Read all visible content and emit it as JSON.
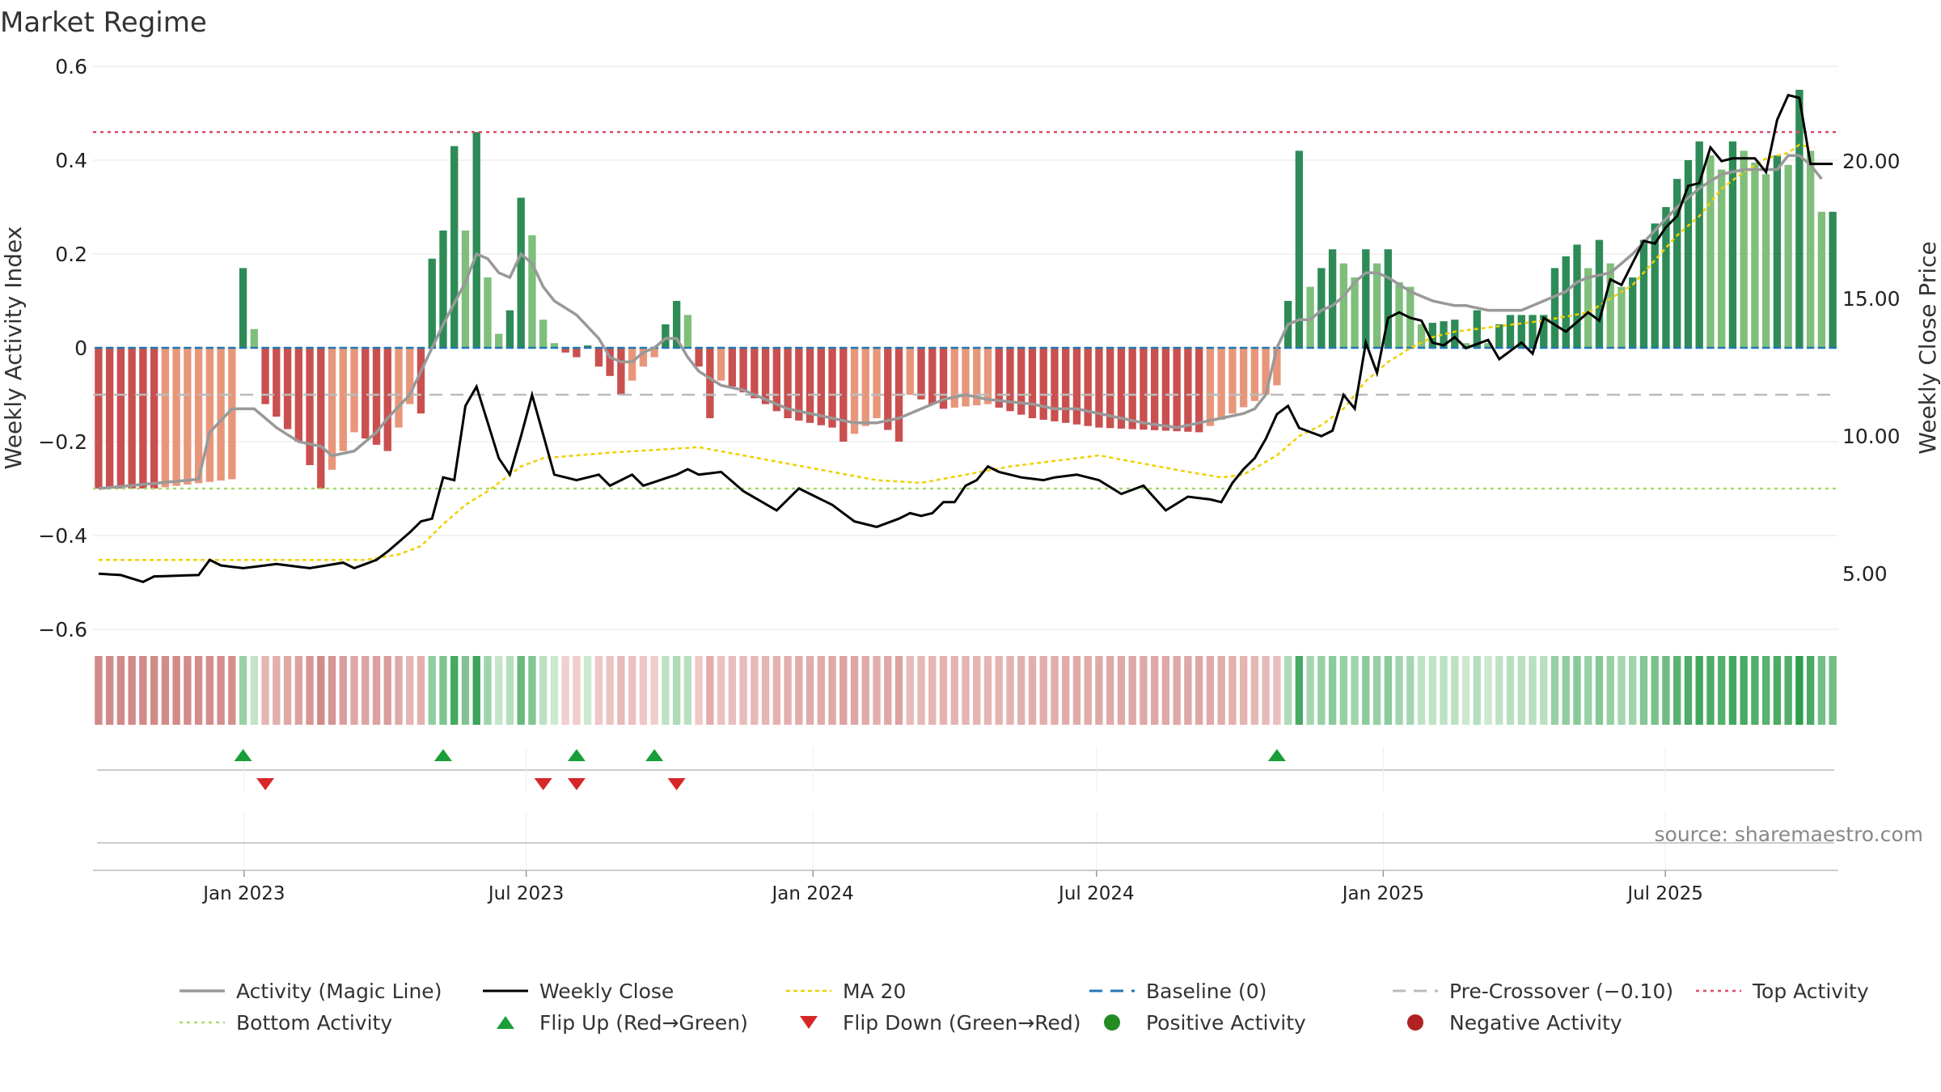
{
  "title": "Market Regime",
  "source": "source: sharemaestro.com",
  "chart_data": {
    "type": "bar",
    "x_axis": {
      "type": "date",
      "range": [
        "2022-09-26",
        "2025-10-20"
      ],
      "ticks": [
        {
          "date": "2023-01-01",
          "label": "Jan 2023"
        },
        {
          "date": "2023-07-01",
          "label": "Jul 2023"
        },
        {
          "date": "2024-01-01",
          "label": "Jan 2024"
        },
        {
          "date": "2024-07-01",
          "label": "Jul 2024"
        },
        {
          "date": "2025-01-01",
          "label": "Jan 2025"
        },
        {
          "date": "2025-07-01",
          "label": "Jul 2025"
        }
      ]
    },
    "y_left": {
      "label": "Weekly Activity Index",
      "range": [
        -0.6,
        0.6
      ],
      "ticks": [
        {
          "value": 0.6,
          "label": "0.6"
        },
        {
          "value": 0.4,
          "label": "0.4"
        },
        {
          "value": 0.2,
          "label": "0.2"
        },
        {
          "value": 0,
          "label": "0"
        },
        {
          "value": -0.2,
          "label": "−0.2"
        },
        {
          "value": -0.4,
          "label": "−0.4"
        },
        {
          "value": -0.6,
          "label": "−0.6"
        }
      ]
    },
    "y_right": {
      "label": "Weekly Close Price",
      "ticks": [
        {
          "value": 20,
          "label": "20.00"
        },
        {
          "value": 15,
          "label": "15.00"
        },
        {
          "value": 10,
          "label": "10.00"
        },
        {
          "value": 5,
          "label": "5.00"
        }
      ]
    },
    "reference_lines": {
      "top_activity": 0.46,
      "bottom_activity": -0.3,
      "baseline": 0,
      "pre_crossover": -0.1
    },
    "activity_keyframes": [
      [
        0,
        -0.3
      ],
      [
        5,
        -0.3
      ],
      [
        12,
        -0.28
      ],
      [
        13,
        0.17
      ],
      [
        14,
        0.04
      ],
      [
        15,
        -0.12
      ],
      [
        18,
        -0.2
      ],
      [
        19,
        -0.25
      ],
      [
        20,
        -0.3
      ],
      [
        23,
        -0.18
      ],
      [
        26,
        -0.22
      ],
      [
        28,
        -0.12
      ],
      [
        29,
        -0.14
      ],
      [
        30,
        0.19
      ],
      [
        31,
        0.25
      ],
      [
        32,
        0.43
      ],
      [
        33,
        0.25
      ],
      [
        34,
        0.46
      ],
      [
        35,
        0.15
      ],
      [
        36,
        0.03
      ],
      [
        37,
        0.08
      ],
      [
        38,
        0.32
      ],
      [
        39,
        0.24
      ],
      [
        40,
        0.06
      ],
      [
        41,
        0.01
      ],
      [
        42,
        -0.01
      ],
      [
        43,
        -0.02
      ],
      [
        44,
        0.005
      ],
      [
        45,
        -0.04
      ],
      [
        46,
        -0.06
      ],
      [
        47,
        -0.1
      ],
      [
        49,
        -0.04
      ],
      [
        50,
        -0.02
      ],
      [
        51,
        0.05
      ],
      [
        52,
        0.1
      ],
      [
        53,
        0.07
      ],
      [
        54,
        -0.04
      ],
      [
        55,
        -0.15
      ],
      [
        56,
        -0.07
      ],
      [
        60,
        -0.12
      ],
      [
        62,
        -0.15
      ],
      [
        66,
        -0.17
      ],
      [
        67,
        -0.2
      ],
      [
        70,
        -0.15
      ],
      [
        72,
        -0.2
      ],
      [
        73,
        -0.1
      ],
      [
        76,
        -0.13
      ],
      [
        80,
        -0.12
      ],
      [
        84,
        -0.15
      ],
      [
        90,
        -0.17
      ],
      [
        99,
        -0.18
      ],
      [
        102,
        -0.14
      ],
      [
        105,
        -0.1
      ],
      [
        106,
        -0.08
      ],
      [
        107,
        0.1
      ],
      [
        108,
        0.42
      ],
      [
        109,
        0.13
      ],
      [
        111,
        0.21
      ],
      [
        113,
        0.15
      ],
      [
        114,
        0.21
      ],
      [
        115,
        0.18
      ],
      [
        116,
        0.21
      ],
      [
        117,
        0.14
      ],
      [
        118,
        0.13
      ],
      [
        119,
        0.05
      ],
      [
        122,
        0.06
      ],
      [
        123,
        0.01
      ],
      [
        124,
        0.08
      ],
      [
        125,
        0.01
      ],
      [
        126,
        0.05
      ],
      [
        127,
        0.07
      ],
      [
        130,
        0.07
      ],
      [
        131,
        0.17
      ],
      [
        133,
        0.22
      ],
      [
        134,
        0.17
      ],
      [
        135,
        0.23
      ],
      [
        137,
        0.13
      ],
      [
        138,
        0.15
      ],
      [
        139,
        0.23
      ],
      [
        141,
        0.3
      ],
      [
        142,
        0.36
      ],
      [
        144,
        0.44
      ],
      [
        146,
        0.38
      ],
      [
        147,
        0.44
      ],
      [
        148,
        0.42
      ],
      [
        150,
        0.37
      ],
      [
        151,
        0.41
      ],
      [
        152,
        0.39
      ],
      [
        153,
        0.55
      ],
      [
        154,
        0.42
      ],
      [
        155,
        0.29
      ],
      [
        156,
        0.29
      ]
    ],
    "close_keyframes": [
      [
        0,
        5.0
      ],
      [
        2,
        4.95
      ],
      [
        4,
        4.7
      ],
      [
        5,
        4.9
      ],
      [
        9,
        4.95
      ],
      [
        10,
        5.5
      ],
      [
        11,
        5.3
      ],
      [
        13,
        5.2
      ],
      [
        16,
        5.35
      ],
      [
        19,
        5.2
      ],
      [
        22,
        5.4
      ],
      [
        23,
        5.2
      ],
      [
        25,
        5.5
      ],
      [
        26,
        5.8
      ],
      [
        28,
        6.5
      ],
      [
        29,
        6.9
      ],
      [
        30,
        7.0
      ],
      [
        31,
        8.5
      ],
      [
        32,
        8.4
      ],
      [
        33,
        11.1
      ],
      [
        34,
        11.8
      ],
      [
        35,
        10.5
      ],
      [
        36,
        9.2
      ],
      [
        37,
        8.6
      ],
      [
        38,
        10.0
      ],
      [
        39,
        11.5
      ],
      [
        41,
        8.6
      ],
      [
        43,
        8.4
      ],
      [
        45,
        8.6
      ],
      [
        46,
        8.2
      ],
      [
        48,
        8.6
      ],
      [
        49,
        8.2
      ],
      [
        52,
        8.6
      ],
      [
        53,
        8.8
      ],
      [
        54,
        8.6
      ],
      [
        56,
        8.7
      ],
      [
        58,
        8.0
      ],
      [
        61,
        7.3
      ],
      [
        63,
        8.1
      ],
      [
        66,
        7.5
      ],
      [
        68,
        6.9
      ],
      [
        70,
        6.7
      ],
      [
        72,
        7.0
      ],
      [
        73,
        7.2
      ],
      [
        74,
        7.1
      ],
      [
        75,
        7.2
      ],
      [
        76,
        7.6
      ],
      [
        77,
        7.6
      ],
      [
        78,
        8.2
      ],
      [
        79,
        8.4
      ],
      [
        80,
        8.9
      ],
      [
        81,
        8.7
      ],
      [
        82,
        8.6
      ],
      [
        83,
        8.5
      ],
      [
        85,
        8.4
      ],
      [
        86,
        8.5
      ],
      [
        88,
        8.6
      ],
      [
        90,
        8.4
      ],
      [
        92,
        7.9
      ],
      [
        94,
        8.2
      ],
      [
        96,
        7.3
      ],
      [
        98,
        7.8
      ],
      [
        100,
        7.7
      ],
      [
        101,
        7.6
      ],
      [
        102,
        8.3
      ],
      [
        103,
        8.8
      ],
      [
        104,
        9.2
      ],
      [
        105,
        9.9
      ],
      [
        106,
        10.8
      ],
      [
        107,
        11.1
      ],
      [
        108,
        10.3
      ],
      [
        110,
        10.0
      ],
      [
        111,
        10.2
      ],
      [
        112,
        11.5
      ],
      [
        113,
        11.0
      ],
      [
        114,
        13.4
      ],
      [
        115,
        12.3
      ],
      [
        116,
        14.3
      ],
      [
        117,
        14.5
      ],
      [
        118,
        14.3
      ],
      [
        119,
        14.2
      ],
      [
        120,
        13.4
      ],
      [
        121,
        13.3
      ],
      [
        122,
        13.6
      ],
      [
        123,
        13.2
      ],
      [
        125,
        13.5
      ],
      [
        126,
        12.8
      ],
      [
        127,
        13.1
      ],
      [
        128,
        13.4
      ],
      [
        129,
        13.0
      ],
      [
        130,
        14.3
      ],
      [
        132,
        13.8
      ],
      [
        134,
        14.5
      ],
      [
        135,
        14.2
      ],
      [
        136,
        15.7
      ],
      [
        137,
        15.5
      ],
      [
        139,
        17.1
      ],
      [
        140,
        17.0
      ],
      [
        141,
        17.6
      ],
      [
        142,
        18.0
      ],
      [
        143,
        19.1
      ],
      [
        144,
        19.2
      ],
      [
        145,
        20.5
      ],
      [
        146,
        20.0
      ],
      [
        147,
        20.1
      ],
      [
        149,
        20.1
      ],
      [
        150,
        19.6
      ],
      [
        151,
        21.5
      ],
      [
        152,
        22.4
      ],
      [
        153,
        22.3
      ],
      [
        154,
        19.9
      ],
      [
        156,
        19.9
      ]
    ],
    "magic_keyframes": [
      [
        0,
        -0.3
      ],
      [
        9,
        -0.28
      ],
      [
        10,
        -0.18
      ],
      [
        12,
        -0.13
      ],
      [
        14,
        -0.13
      ],
      [
        15,
        -0.15
      ],
      [
        16,
        -0.17
      ],
      [
        18,
        -0.2
      ],
      [
        20,
        -0.21
      ],
      [
        21,
        -0.23
      ],
      [
        23,
        -0.22
      ],
      [
        25,
        -0.18
      ],
      [
        26,
        -0.15
      ],
      [
        28,
        -0.1
      ],
      [
        29,
        -0.05
      ],
      [
        30,
        0.0
      ],
      [
        31,
        0.05
      ],
      [
        33,
        0.14
      ],
      [
        34,
        0.2
      ],
      [
        35,
        0.19
      ],
      [
        36,
        0.16
      ],
      [
        37,
        0.15
      ],
      [
        38,
        0.2
      ],
      [
        39,
        0.18
      ],
      [
        40,
        0.13
      ],
      [
        41,
        0.1
      ],
      [
        43,
        0.07
      ],
      [
        45,
        0.02
      ],
      [
        46,
        -0.02
      ],
      [
        47,
        -0.03
      ],
      [
        48,
        -0.03
      ],
      [
        49,
        -0.01
      ],
      [
        50,
        0.0
      ],
      [
        51,
        0.02
      ],
      [
        52,
        0.02
      ],
      [
        53,
        -0.02
      ],
      [
        54,
        -0.05
      ],
      [
        56,
        -0.08
      ],
      [
        58,
        -0.09
      ],
      [
        60,
        -0.11
      ],
      [
        62,
        -0.13
      ],
      [
        64,
        -0.14
      ],
      [
        66,
        -0.15
      ],
      [
        68,
        -0.16
      ],
      [
        70,
        -0.16
      ],
      [
        72,
        -0.15
      ],
      [
        74,
        -0.13
      ],
      [
        76,
        -0.11
      ],
      [
        78,
        -0.1
      ],
      [
        80,
        -0.11
      ],
      [
        84,
        -0.12
      ],
      [
        86,
        -0.13
      ],
      [
        88,
        -0.13
      ],
      [
        90,
        -0.14
      ],
      [
        94,
        -0.16
      ],
      [
        97,
        -0.17
      ],
      [
        99,
        -0.16
      ],
      [
        101,
        -0.15
      ],
      [
        103,
        -0.14
      ],
      [
        104,
        -0.13
      ],
      [
        105,
        -0.1
      ],
      [
        106,
        0.0
      ],
      [
        107,
        0.05
      ],
      [
        108,
        0.06
      ],
      [
        109,
        0.06
      ],
      [
        110,
        0.08
      ],
      [
        111,
        0.09
      ],
      [
        112,
        0.11
      ],
      [
        113,
        0.14
      ],
      [
        114,
        0.16
      ],
      [
        115,
        0.16
      ],
      [
        116,
        0.15
      ],
      [
        118,
        0.12
      ],
      [
        120,
        0.1
      ],
      [
        122,
        0.09
      ],
      [
        123,
        0.09
      ],
      [
        125,
        0.08
      ],
      [
        126,
        0.08
      ],
      [
        128,
        0.08
      ],
      [
        130,
        0.1
      ],
      [
        131,
        0.11
      ],
      [
        132,
        0.12
      ],
      [
        133,
        0.14
      ],
      [
        134,
        0.15
      ],
      [
        136,
        0.16
      ],
      [
        138,
        0.2
      ],
      [
        140,
        0.25
      ],
      [
        142,
        0.3
      ],
      [
        144,
        0.34
      ],
      [
        146,
        0.37
      ],
      [
        148,
        0.38
      ],
      [
        150,
        0.38
      ],
      [
        151,
        0.38
      ],
      [
        152,
        0.41
      ],
      [
        153,
        0.41
      ],
      [
        154,
        0.39
      ],
      [
        155,
        0.36
      ]
    ],
    "ma20_keyframes": [
      [
        0,
        5.5
      ],
      [
        24,
        5.5
      ],
      [
        27,
        5.7
      ],
      [
        29,
        6.0
      ],
      [
        31,
        6.8
      ],
      [
        33,
        7.5
      ],
      [
        35,
        8.0
      ],
      [
        38,
        8.9
      ],
      [
        40,
        9.2
      ],
      [
        43,
        9.3
      ],
      [
        46,
        9.4
      ],
      [
        50,
        9.5
      ],
      [
        54,
        9.6
      ],
      [
        58,
        9.3
      ],
      [
        62,
        9.0
      ],
      [
        66,
        8.7
      ],
      [
        70,
        8.4
      ],
      [
        74,
        8.3
      ],
      [
        78,
        8.6
      ],
      [
        82,
        8.9
      ],
      [
        86,
        9.1
      ],
      [
        90,
        9.3
      ],
      [
        94,
        9.0
      ],
      [
        98,
        8.7
      ],
      [
        101,
        8.5
      ],
      [
        103,
        8.6
      ],
      [
        106,
        9.3
      ],
      [
        108,
        10.0
      ],
      [
        110,
        10.4
      ],
      [
        112,
        11.0
      ],
      [
        114,
        12.0
      ],
      [
        116,
        12.7
      ],
      [
        118,
        13.2
      ],
      [
        120,
        13.6
      ],
      [
        122,
        13.8
      ],
      [
        126,
        14.0
      ],
      [
        130,
        14.2
      ],
      [
        134,
        14.5
      ],
      [
        138,
        15.5
      ],
      [
        140,
        16.4
      ],
      [
        142,
        17.3
      ],
      [
        144,
        18.0
      ],
      [
        146,
        19.0
      ],
      [
        148,
        19.6
      ],
      [
        150,
        20.1
      ],
      [
        152,
        20.3
      ],
      [
        153,
        20.6
      ],
      [
        154,
        20.5
      ]
    ],
    "flip_up_weeks": [
      13,
      31,
      43,
      50,
      106
    ],
    "flip_down_weeks": [
      15,
      40,
      43,
      52
    ],
    "legend": [
      {
        "key": "magic",
        "label": "Activity (Magic Line)",
        "color": "#999999"
      },
      {
        "key": "close",
        "label": "Weekly Close",
        "color": "#000000"
      },
      {
        "key": "ma20",
        "label": "MA 20",
        "color": "#f0d000"
      },
      {
        "key": "baseline",
        "label": "Baseline (0)",
        "color": "#1f77b4"
      },
      {
        "key": "precross",
        "label": "Pre-Crossover (−0.10)",
        "color": "#bbbbbb"
      },
      {
        "key": "top",
        "label": "Top Activity",
        "color": "#d94c6a"
      },
      {
        "key": "bottom",
        "label": "Bottom Activity",
        "color": "#a6d96a"
      },
      {
        "key": "flipup",
        "label": "Flip Up (Red→Green)",
        "color": "#1a9e3a"
      },
      {
        "key": "flipdown",
        "label": "Flip Down (Green→Red)",
        "color": "#d62728"
      },
      {
        "key": "pos",
        "label": "Positive Activity",
        "color": "#228b22"
      },
      {
        "key": "neg",
        "label": "Negative Activity",
        "color": "#b22222"
      }
    ]
  }
}
